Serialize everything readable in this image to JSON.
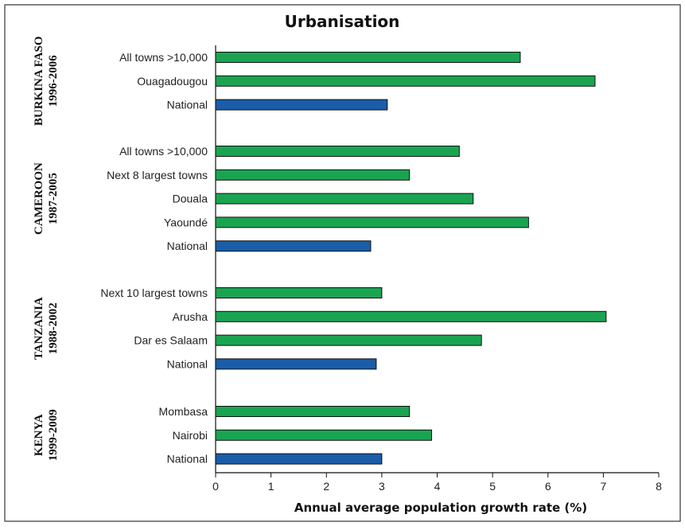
{
  "chart_data": {
    "type": "bar",
    "orientation": "horizontal",
    "title": "Urbanisation",
    "xlabel": "Annual average population growth rate (%)",
    "ylabel": "",
    "xlim": [
      0,
      8
    ],
    "xticks": [
      "0",
      "1",
      "2",
      "3",
      "4",
      "5",
      "6",
      "7",
      "8"
    ],
    "grid": false,
    "legend": "none",
    "colors": {
      "city": "#1aa452",
      "national": "#1a5da8",
      "border": "#111111",
      "frame": "#333333"
    },
    "groups": [
      {
        "label_line1": "BURKINA FASO",
        "label_line2": "1996-2006",
        "bars": [
          {
            "category": "All towns >10,000",
            "value": 5.5,
            "kind": "city"
          },
          {
            "category": "Ouagadougou",
            "value": 6.85,
            "kind": "city"
          },
          {
            "category": "National",
            "value": 3.1,
            "kind": "national"
          }
        ]
      },
      {
        "label_line1": "CAMEROON",
        "label_line2": "1987-2005",
        "bars": [
          {
            "category": "All towns >10,000",
            "value": 4.4,
            "kind": "city"
          },
          {
            "category": "Next 8 largest towns",
            "value": 3.5,
            "kind": "city"
          },
          {
            "category": "Douala",
            "value": 4.65,
            "kind": "city"
          },
          {
            "category": "Yaoundé",
            "value": 5.65,
            "kind": "city"
          },
          {
            "category": "National",
            "value": 2.8,
            "kind": "national"
          }
        ]
      },
      {
        "label_line1": "TANZANIA",
        "label_line2": "1988-2002",
        "bars": [
          {
            "category": "Next 10 largest towns",
            "value": 3.0,
            "kind": "city"
          },
          {
            "category": "Arusha",
            "value": 7.05,
            "kind": "city"
          },
          {
            "category": "Dar es Salaam",
            "value": 4.8,
            "kind": "city"
          },
          {
            "category": "National",
            "value": 2.9,
            "kind": "national"
          }
        ]
      },
      {
        "label_line1": "KENYA",
        "label_line2": "1999-2009",
        "bars": [
          {
            "category": "Mombasa",
            "value": 3.5,
            "kind": "city"
          },
          {
            "category": "Nairobi",
            "value": 3.9,
            "kind": "city"
          },
          {
            "category": "National",
            "value": 3.0,
            "kind": "national"
          }
        ]
      }
    ]
  }
}
